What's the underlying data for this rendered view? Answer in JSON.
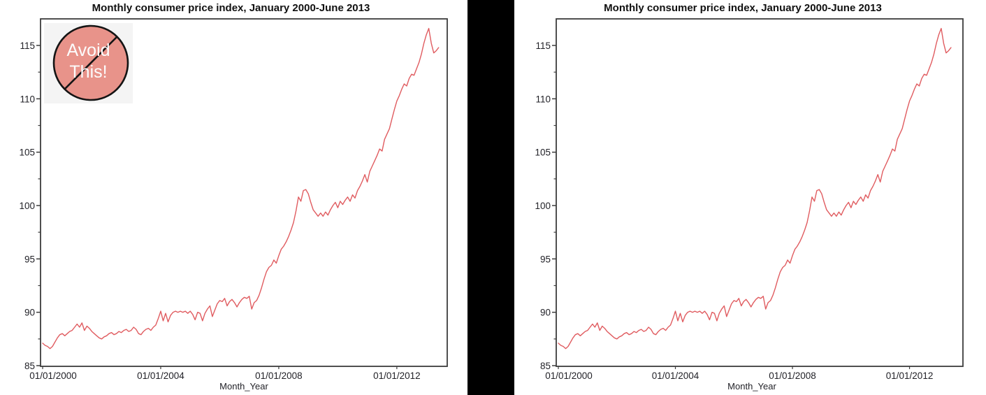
{
  "page": {
    "background": "#ffffff",
    "divider_color": "#000000"
  },
  "charts": {
    "left": {
      "title": "Monthly consumer price index, January 2000-June 2013",
      "annotation": {
        "line1": "Avoid",
        "line2": "This!",
        "circle_color": "#e8938a",
        "outline_color": "#141414",
        "text_color": "#fcfcfc"
      }
    },
    "right": {
      "title": "Monthly consumer price index, January 2000-June 2013"
    }
  },
  "chart_data": {
    "type": "line",
    "title": "Monthly consumer price index, January 2000-June 2013",
    "xlabel": "Month_Year",
    "ylabel": "",
    "x_start": "01/2000",
    "x_end": "06/2013",
    "x_tick_labels": [
      "01/01/2000",
      "01/01/2004",
      "01/01/2008",
      "01/01/2012"
    ],
    "x_tick_interval_months": 48,
    "y_ticks": [
      85,
      90,
      95,
      100,
      105,
      110,
      115
    ],
    "y_minor_ticks": [
      87.5,
      92.5,
      97.5,
      102.5,
      107.5,
      112.5
    ],
    "ylim": [
      85,
      117.5
    ],
    "grid": false,
    "legend": "none",
    "line_color": "#e05c60",
    "axis_color": "#3c3c3c",
    "tick_label_color": "#222228",
    "series": [
      {
        "name": "Consumer price index",
        "frequency": "monthly",
        "values": [
          87.1,
          86.9,
          86.8,
          86.6,
          86.8,
          87.2,
          87.6,
          87.9,
          88.0,
          87.8,
          88.0,
          88.2,
          88.3,
          88.6,
          88.9,
          88.6,
          89.0,
          88.3,
          88.7,
          88.5,
          88.2,
          88.0,
          87.8,
          87.6,
          87.5,
          87.7,
          87.8,
          88.0,
          88.1,
          87.9,
          88.0,
          88.2,
          88.1,
          88.3,
          88.4,
          88.2,
          88.3,
          88.6,
          88.4,
          88.0,
          87.9,
          88.2,
          88.4,
          88.5,
          88.3,
          88.6,
          88.8,
          89.4,
          90.1,
          89.2,
          89.9,
          89.1,
          89.7,
          90.0,
          90.1,
          90.0,
          90.1,
          90.0,
          90.1,
          89.9,
          90.1,
          89.8,
          89.3,
          90.0,
          89.9,
          89.2,
          89.9,
          90.3,
          90.6,
          89.6,
          90.2,
          90.8,
          91.1,
          91.0,
          91.3,
          90.6,
          91.0,
          91.2,
          90.9,
          90.5,
          90.9,
          91.2,
          91.4,
          91.3,
          91.5,
          90.3,
          90.9,
          91.1,
          91.6,
          92.3,
          93.1,
          93.8,
          94.2,
          94.4,
          94.9,
          94.6,
          95.3,
          95.9,
          96.2,
          96.6,
          97.1,
          97.7,
          98.4,
          99.5,
          100.8,
          100.4,
          101.4,
          101.5,
          101.1,
          100.3,
          99.6,
          99.3,
          99.0,
          99.3,
          99.0,
          99.4,
          99.1,
          99.6,
          100.0,
          100.3,
          99.8,
          100.4,
          100.1,
          100.5,
          100.8,
          100.4,
          101.0,
          100.7,
          101.4,
          101.8,
          102.3,
          102.9,
          102.2,
          103.2,
          103.7,
          104.2,
          104.7,
          105.3,
          105.1,
          106.2,
          106.7,
          107.2,
          108.1,
          109.0,
          109.8,
          110.3,
          110.9,
          111.4,
          111.2,
          111.9,
          112.3,
          112.2,
          112.8,
          113.4,
          114.2,
          115.2,
          116.0,
          116.6,
          115.2,
          114.3,
          114.5,
          114.8
        ]
      }
    ]
  }
}
